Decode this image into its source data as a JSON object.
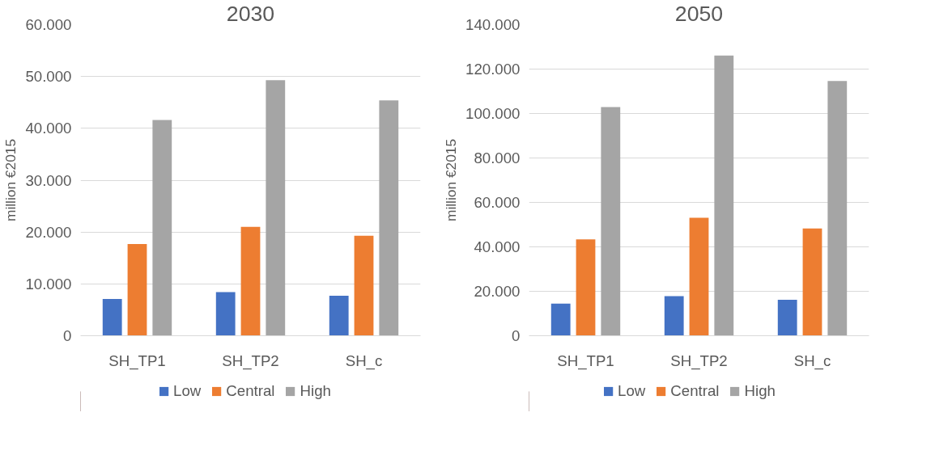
{
  "chart_data": [
    {
      "type": "bar",
      "title": "2030",
      "ylabel": "million €2015",
      "categories": [
        "SH_TP1",
        "SH_TP2",
        "SH_c"
      ],
      "series": [
        {
          "name": "Low",
          "color": "#4472c4",
          "values": [
            7100,
            8400,
            7700
          ]
        },
        {
          "name": "Central",
          "color": "#ed7d31",
          "values": [
            17700,
            21000,
            19300
          ]
        },
        {
          "name": "High",
          "color": "#a5a5a5",
          "values": [
            41600,
            49300,
            45400
          ]
        }
      ],
      "ylim": [
        0,
        60000
      ],
      "yticks": [
        0,
        {
          "value": 10000,
          "label": "10.000"
        },
        {
          "value": 20000,
          "label": "20.000"
        },
        {
          "value": 30000,
          "label": "30.000"
        },
        {
          "value": 40000,
          "label": "40.000"
        },
        {
          "value": 50000,
          "label": "50.000"
        },
        {
          "value": 60000,
          "label": "60.000"
        }
      ],
      "grid": "y",
      "legend": "bottom"
    },
    {
      "type": "bar",
      "title": "2050",
      "ylabel": "million €2015",
      "categories": [
        "SH_TP1",
        "SH_TP2",
        "SH_c"
      ],
      "series": [
        {
          "name": "Low",
          "color": "#4472c4",
          "values": [
            14500,
            17800,
            16200
          ]
        },
        {
          "name": "Central",
          "color": "#ed7d31",
          "values": [
            43400,
            53100,
            48300
          ]
        },
        {
          "name": "High",
          "color": "#a5a5a5",
          "values": [
            102900,
            126100,
            114600
          ]
        }
      ],
      "ylim": [
        0,
        140000
      ],
      "yticks": [
        0,
        {
          "value": 20000,
          "label": "20.000"
        },
        {
          "value": 40000,
          "label": "40.000"
        },
        {
          "value": 60000,
          "label": "60.000"
        },
        {
          "value": 80000,
          "label": "80.000"
        },
        {
          "value": 100000,
          "label": "100.000"
        },
        {
          "value": 120000,
          "label": "120.000"
        },
        {
          "value": 140000,
          "label": "140.000"
        }
      ],
      "grid": "y",
      "legend": "bottom"
    }
  ]
}
